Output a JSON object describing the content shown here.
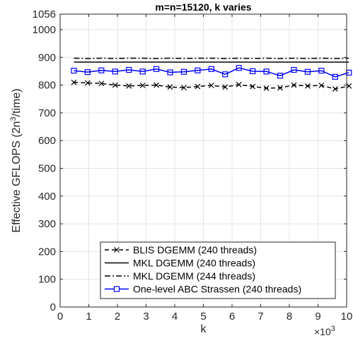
{
  "chart_data": {
    "type": "line",
    "title": "m=n=15120, k varies",
    "xlabel": "k",
    "ylabel_main": "Effective GFLOPS (2n",
    "ylabel_sup": "3",
    "ylabel_tail": "/time)",
    "x_exponent_base": "×10",
    "x_exponent_power": "3",
    "xlim": [
      0,
      10
    ],
    "ylim": [
      0,
      1056
    ],
    "xticks": [
      0,
      1,
      2,
      3,
      4,
      5,
      6,
      7,
      8,
      9,
      10
    ],
    "xtick_labels": [
      "0",
      "1",
      "2",
      "3",
      "4",
      "5",
      "6",
      "7",
      "8",
      "9",
      "10"
    ],
    "yticks": [
      0,
      100,
      200,
      300,
      400,
      500,
      600,
      700,
      800,
      900,
      1000,
      1056
    ],
    "ytick_labels": [
      "0",
      "100",
      "200",
      "300",
      "400",
      "500",
      "600",
      "700",
      "800",
      "900",
      "1000",
      "1056"
    ],
    "grid": true,
    "legend_position": "bottom-right",
    "x": [
      0.48,
      0.96,
      1.44,
      1.92,
      2.4,
      2.88,
      3.36,
      3.84,
      4.32,
      4.8,
      5.28,
      5.76,
      6.24,
      6.72,
      7.2,
      7.68,
      8.16,
      8.64,
      9.12,
      9.6,
      10.08
    ],
    "series": [
      {
        "name": "BLIS DGEMM (240 threads)",
        "color": "#000000",
        "style": "dashed",
        "marker": "x",
        "values": [
          810,
          808,
          806,
          800,
          797,
          799,
          800,
          793,
          791,
          795,
          799,
          793,
          802,
          795,
          789,
          790,
          800,
          797,
          799,
          786,
          797
        ]
      },
      {
        "name": "MKL DGEMM (240 threads)",
        "color": "#000000",
        "style": "solid",
        "marker": "none",
        "values": [
          883,
          883,
          883,
          883,
          883,
          883,
          883,
          883,
          883,
          883,
          883,
          883,
          883,
          883,
          883,
          883,
          883,
          883,
          883,
          883,
          883
        ]
      },
      {
        "name": "MKL DGEMM (244 threads)",
        "color": "#000000",
        "style": "dashdot",
        "marker": "none",
        "values": [
          897,
          896,
          897,
          896,
          897,
          897,
          896,
          897,
          896,
          897,
          897,
          896,
          897,
          896,
          897,
          896,
          897,
          896,
          897,
          896,
          897
        ]
      },
      {
        "name": "One-level ABC Strassen (240 threads)",
        "color": "#0000ff",
        "style": "solid",
        "marker": "square",
        "values": [
          852,
          847,
          853,
          849,
          855,
          849,
          858,
          846,
          848,
          853,
          858,
          839,
          862,
          850,
          849,
          834,
          855,
          848,
          852,
          830,
          845
        ]
      }
    ]
  }
}
